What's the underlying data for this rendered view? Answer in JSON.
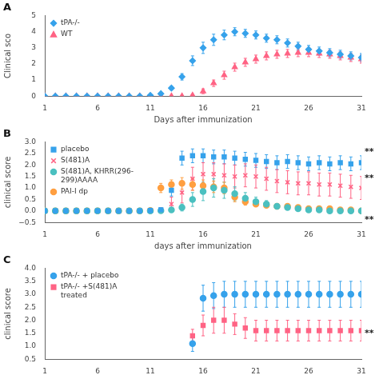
{
  "chart_data": [
    {
      "type": "scatter",
      "title": "A",
      "xlabel": "Days after immunization",
      "ylabel": "Clinical sco",
      "x": [
        1,
        2,
        3,
        4,
        5,
        6,
        7,
        8,
        9,
        10,
        11,
        12,
        13,
        14,
        15,
        16,
        17,
        18,
        19,
        20,
        21,
        22,
        23,
        24,
        25,
        26,
        27,
        28,
        29,
        30,
        31
      ],
      "xlim": [
        1,
        31
      ],
      "xticks": [
        1,
        6,
        11,
        16,
        21,
        26,
        31
      ],
      "ylim": [
        0,
        5
      ],
      "yticks": [
        0,
        1,
        2,
        3,
        4,
        5
      ],
      "grid": false,
      "legend": "upper left",
      "series": [
        {
          "name": "tPA-/-",
          "marker": "diamond",
          "values": [
            0,
            0,
            0,
            0,
            0,
            0,
            0,
            0,
            0,
            0,
            0.05,
            0.15,
            0.5,
            1.2,
            2.2,
            3.0,
            3.5,
            3.8,
            4.0,
            3.9,
            3.8,
            3.6,
            3.5,
            3.3,
            3.1,
            2.9,
            2.8,
            2.7,
            2.6,
            2.5,
            2.4
          ],
          "errors": [
            0,
            0,
            0,
            0,
            0,
            0,
            0,
            0,
            0,
            0,
            0,
            0.05,
            0.1,
            0.2,
            0.3,
            0.35,
            0.35,
            0.3,
            0.25,
            0.25,
            0.25,
            0.25,
            0.25,
            0.25,
            0.25,
            0.25,
            0.25,
            0.25,
            0.25,
            0.25,
            0.25
          ]
        },
        {
          "name": "WT",
          "marker": "triangle",
          "values": [
            0,
            0,
            0,
            0,
            0,
            0,
            0,
            0,
            0,
            0,
            0,
            0,
            0,
            0,
            0.05,
            0.3,
            0.8,
            1.3,
            1.8,
            2.1,
            2.3,
            2.5,
            2.6,
            2.65,
            2.7,
            2.7,
            2.65,
            2.6,
            2.5,
            2.4,
            2.3
          ],
          "errors": [
            0,
            0,
            0,
            0,
            0,
            0,
            0,
            0,
            0,
            0,
            0,
            0,
            0,
            0,
            0.05,
            0.15,
            0.2,
            0.25,
            0.25,
            0.25,
            0.25,
            0.25,
            0.25,
            0.25,
            0.25,
            0.25,
            0.25,
            0.25,
            0.25,
            0.25,
            0.25
          ]
        }
      ]
    },
    {
      "type": "scatter",
      "title": "B",
      "xlabel": "days after immunization",
      "ylabel": "clinical score",
      "x": [
        1,
        2,
        3,
        4,
        5,
        6,
        7,
        8,
        9,
        10,
        11,
        12,
        13,
        14,
        15,
        16,
        17,
        18,
        19,
        20,
        21,
        22,
        23,
        24,
        25,
        26,
        27,
        28,
        29,
        30,
        31
      ],
      "xlim": [
        1,
        31
      ],
      "xticks": [
        1,
        6,
        11,
        16,
        21,
        26,
        31
      ],
      "ylim": [
        -0.5,
        3.0
      ],
      "yticks": [
        {
          "value": -0.5,
          "label": "−0.5"
        },
        {
          "value": 0,
          "label": "0.0"
        },
        0.5,
        {
          "value": 1.0,
          "label": "1.0"
        },
        1.5,
        {
          "value": 2.0,
          "label": "2.0"
        },
        2.5,
        {
          "value": 3.0,
          "label": "3.0"
        }
      ],
      "grid": false,
      "legend": "upper left",
      "annotations": [
        "**",
        "**",
        "**"
      ],
      "series": [
        {
          "name": "placebo",
          "marker": "square",
          "values": [
            0,
            0,
            0,
            0,
            0,
            0,
            0,
            0,
            0,
            0,
            0.02,
            0.05,
            0.9,
            2.3,
            2.4,
            2.4,
            2.35,
            2.35,
            2.3,
            2.25,
            2.2,
            2.15,
            2.1,
            2.15,
            2.1,
            2.05,
            2.1,
            2.05,
            2.1,
            2.05,
            2.1
          ],
          "errors": [
            0,
            0,
            0,
            0,
            0,
            0,
            0,
            0,
            0,
            0,
            0.02,
            0.1,
            0.25,
            0.3,
            0.3,
            0.3,
            0.3,
            0.3,
            0.3,
            0.3,
            0.3,
            0.3,
            0.3,
            0.3,
            0.3,
            0.3,
            0.3,
            0.3,
            0.3,
            0.3,
            0.3
          ]
        },
        {
          "name": "S(481)A",
          "marker": "x",
          "values": [
            0,
            0,
            0,
            0,
            0,
            0,
            0,
            0,
            0,
            0,
            0.02,
            0.05,
            0.3,
            0.8,
            1.4,
            1.6,
            1.6,
            1.55,
            1.5,
            1.55,
            1.5,
            1.4,
            1.3,
            1.25,
            1.2,
            1.2,
            1.15,
            1.15,
            1.1,
            1.05,
            1.0
          ],
          "errors": [
            0,
            0,
            0,
            0,
            0,
            0,
            0,
            0,
            0,
            0,
            0.02,
            0.1,
            0.3,
            0.45,
            0.5,
            0.5,
            0.5,
            0.5,
            0.5,
            0.5,
            0.5,
            0.5,
            0.5,
            0.5,
            0.5,
            0.5,
            0.5,
            0.5,
            0.5,
            0.5,
            0.5
          ]
        },
        {
          "name": "S(481)A, KHRR(296-\n299)AAAA",
          "marker": "circle",
          "values": [
            0,
            0,
            0,
            0,
            0,
            0,
            0,
            0,
            0,
            0,
            0,
            0.01,
            0.05,
            0.15,
            0.5,
            0.85,
            1.0,
            0.9,
            0.75,
            0.55,
            0.4,
            0.3,
            0.2,
            0.15,
            0.1,
            0.05,
            0.05,
            0.0,
            0.0,
            0.0,
            0.0
          ],
          "errors": [
            0,
            0,
            0,
            0,
            0,
            0,
            0,
            0,
            0,
            0,
            0,
            0.01,
            0.05,
            0.15,
            0.3,
            0.4,
            0.4,
            0.35,
            0.3,
            0.25,
            0.2,
            0.15,
            0.1,
            0.1,
            0.05,
            0.05,
            0.05,
            0.0,
            0.0,
            0.0,
            0.0
          ]
        },
        {
          "name": "PAI-I dp",
          "marker": "circle",
          "values": [
            0,
            0,
            0,
            0,
            0,
            0,
            0,
            0,
            0,
            0,
            0.02,
            1.0,
            1.15,
            1.2,
            1.15,
            1.1,
            1.05,
            1.0,
            0.6,
            0.4,
            0.3,
            0.25,
            0.2,
            0.2,
            0.15,
            0.1,
            0.1,
            0.1,
            0.05,
            0.05,
            0.0
          ],
          "errors": [
            0,
            0,
            0,
            0,
            0,
            0,
            0,
            0,
            0,
            0,
            0.02,
            0.2,
            0.2,
            0.25,
            0.25,
            0.25,
            0.25,
            0.25,
            0.2,
            0.15,
            0.1,
            0.1,
            0.1,
            0.1,
            0.05,
            0.05,
            0.05,
            0.05,
            0.05,
            0.05,
            0.0
          ]
        }
      ]
    },
    {
      "type": "scatter",
      "title": "C",
      "ylabel": "clinical score",
      "x": [
        1,
        2,
        3,
        4,
        5,
        6,
        7,
        8,
        9,
        10,
        11,
        12,
        13,
        14,
        15,
        16,
        17,
        18,
        19,
        20,
        21,
        22,
        23,
        24,
        25,
        26,
        27,
        28,
        29,
        30,
        31
      ],
      "xlim": [
        1,
        31
      ],
      "xticks": [
        1,
        6,
        11,
        16,
        21,
        26,
        31
      ],
      "ylim": [
        0.5,
        4.0
      ],
      "yticks": [
        0.5,
        {
          "value": 1.0,
          "label": "1.0"
        },
        1.5,
        {
          "value": 2.0,
          "label": "2.0"
        },
        2.5,
        {
          "value": 3.0,
          "label": "3.0"
        },
        3.5,
        {
          "value": 4.0,
          "label": "4.0"
        }
      ],
      "grid": false,
      "legend": "upper left",
      "annotations": [
        "**"
      ],
      "series": [
        {
          "name": "tPA-/- + placebo",
          "marker": "circle",
          "values": [
            null,
            null,
            null,
            null,
            null,
            null,
            null,
            null,
            null,
            null,
            null,
            null,
            null,
            null,
            1.1,
            2.85,
            2.95,
            3.0,
            3.0,
            3.0,
            3.0,
            3.0,
            3.0,
            3.0,
            3.0,
            3.0,
            3.0,
            3.0,
            3.0,
            3.0,
            3.0
          ],
          "errors": [
            0,
            0,
            0,
            0,
            0,
            0,
            0,
            0,
            0,
            0,
            0,
            0,
            0,
            0,
            0.3,
            0.5,
            0.5,
            0.5,
            0.5,
            0.5,
            0.5,
            0.5,
            0.5,
            0.5,
            0.5,
            0.5,
            0.5,
            0.5,
            0.5,
            0.5,
            0.5
          ]
        },
        {
          "name": "tPA-/- +S(481)A\ntreated",
          "marker": "square",
          "values": [
            null,
            null,
            null,
            null,
            null,
            null,
            null,
            null,
            null,
            null,
            null,
            null,
            null,
            null,
            1.4,
            1.8,
            2.0,
            2.0,
            1.85,
            1.7,
            1.6,
            1.6,
            1.6,
            1.6,
            1.6,
            1.6,
            1.6,
            1.6,
            1.6,
            1.6,
            1.6
          ],
          "errors": [
            0,
            0,
            0,
            0,
            0,
            0,
            0,
            0,
            0,
            0,
            0,
            0,
            0,
            0,
            0.25,
            0.4,
            0.5,
            0.5,
            0.4,
            0.4,
            0.4,
            0.4,
            0.4,
            0.4,
            0.4,
            0.4,
            0.4,
            0.4,
            0.4,
            0.4,
            0.4
          ]
        }
      ]
    }
  ]
}
